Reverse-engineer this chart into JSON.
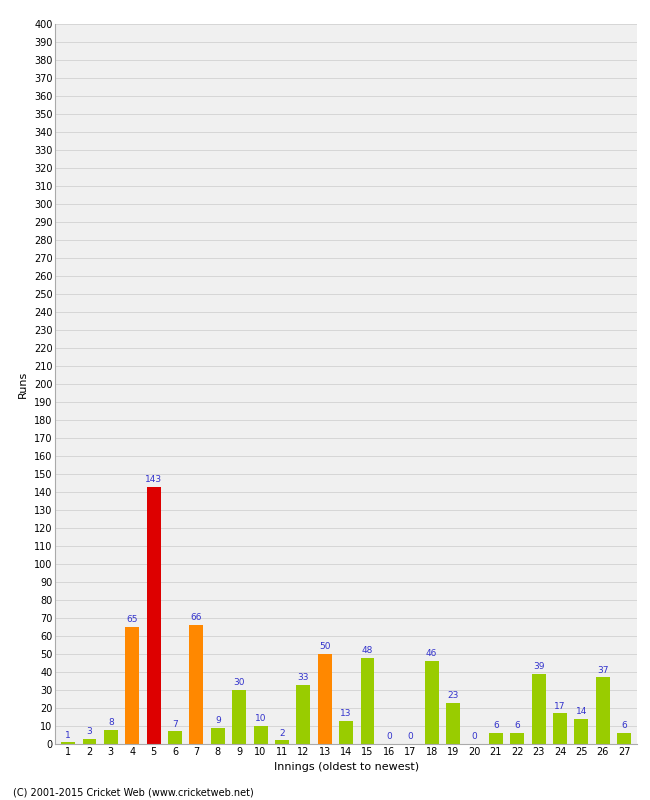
{
  "xlabel": "Innings (oldest to newest)",
  "ylabel": "Runs",
  "values": [
    1,
    3,
    8,
    65,
    143,
    7,
    66,
    9,
    30,
    10,
    2,
    33,
    50,
    13,
    48,
    0,
    0,
    46,
    23,
    0,
    6,
    6,
    39,
    17,
    14,
    37,
    6
  ],
  "colors": [
    "#99cc00",
    "#99cc00",
    "#99cc00",
    "#ff8800",
    "#dd0000",
    "#99cc00",
    "#ff8800",
    "#99cc00",
    "#99cc00",
    "#99cc00",
    "#99cc00",
    "#99cc00",
    "#ff8800",
    "#99cc00",
    "#99cc00",
    "#99cc00",
    "#99cc00",
    "#99cc00",
    "#99cc00",
    "#99cc00",
    "#99cc00",
    "#99cc00",
    "#99cc00",
    "#99cc00",
    "#99cc00",
    "#99cc00",
    "#99cc00"
  ],
  "xlabels": [
    "1",
    "2",
    "3",
    "4",
    "5",
    "6",
    "7",
    "8",
    "9",
    "10",
    "11",
    "12",
    "13",
    "14",
    "15",
    "16",
    "17",
    "18",
    "19",
    "20",
    "21",
    "22",
    "23",
    "24",
    "25",
    "26",
    "27"
  ],
  "ylim": [
    0,
    400
  ],
  "ytick_values": [
    0,
    10,
    20,
    30,
    40,
    50,
    60,
    70,
    80,
    90,
    100,
    110,
    120,
    130,
    140,
    150,
    160,
    170,
    180,
    190,
    200,
    210,
    220,
    230,
    240,
    250,
    260,
    270,
    280,
    290,
    300,
    310,
    320,
    330,
    340,
    350,
    360,
    370,
    380,
    390,
    400
  ],
  "bg_color": "#f0f0f0",
  "grid_color": "#cccccc",
  "label_color": "#3333cc",
  "bar_label_fontsize": 6.5,
  "axis_tick_fontsize": 7,
  "axis_label_fontsize": 8,
  "footer": "(C) 2001-2015 Cricket Web (www.cricketweb.net)"
}
